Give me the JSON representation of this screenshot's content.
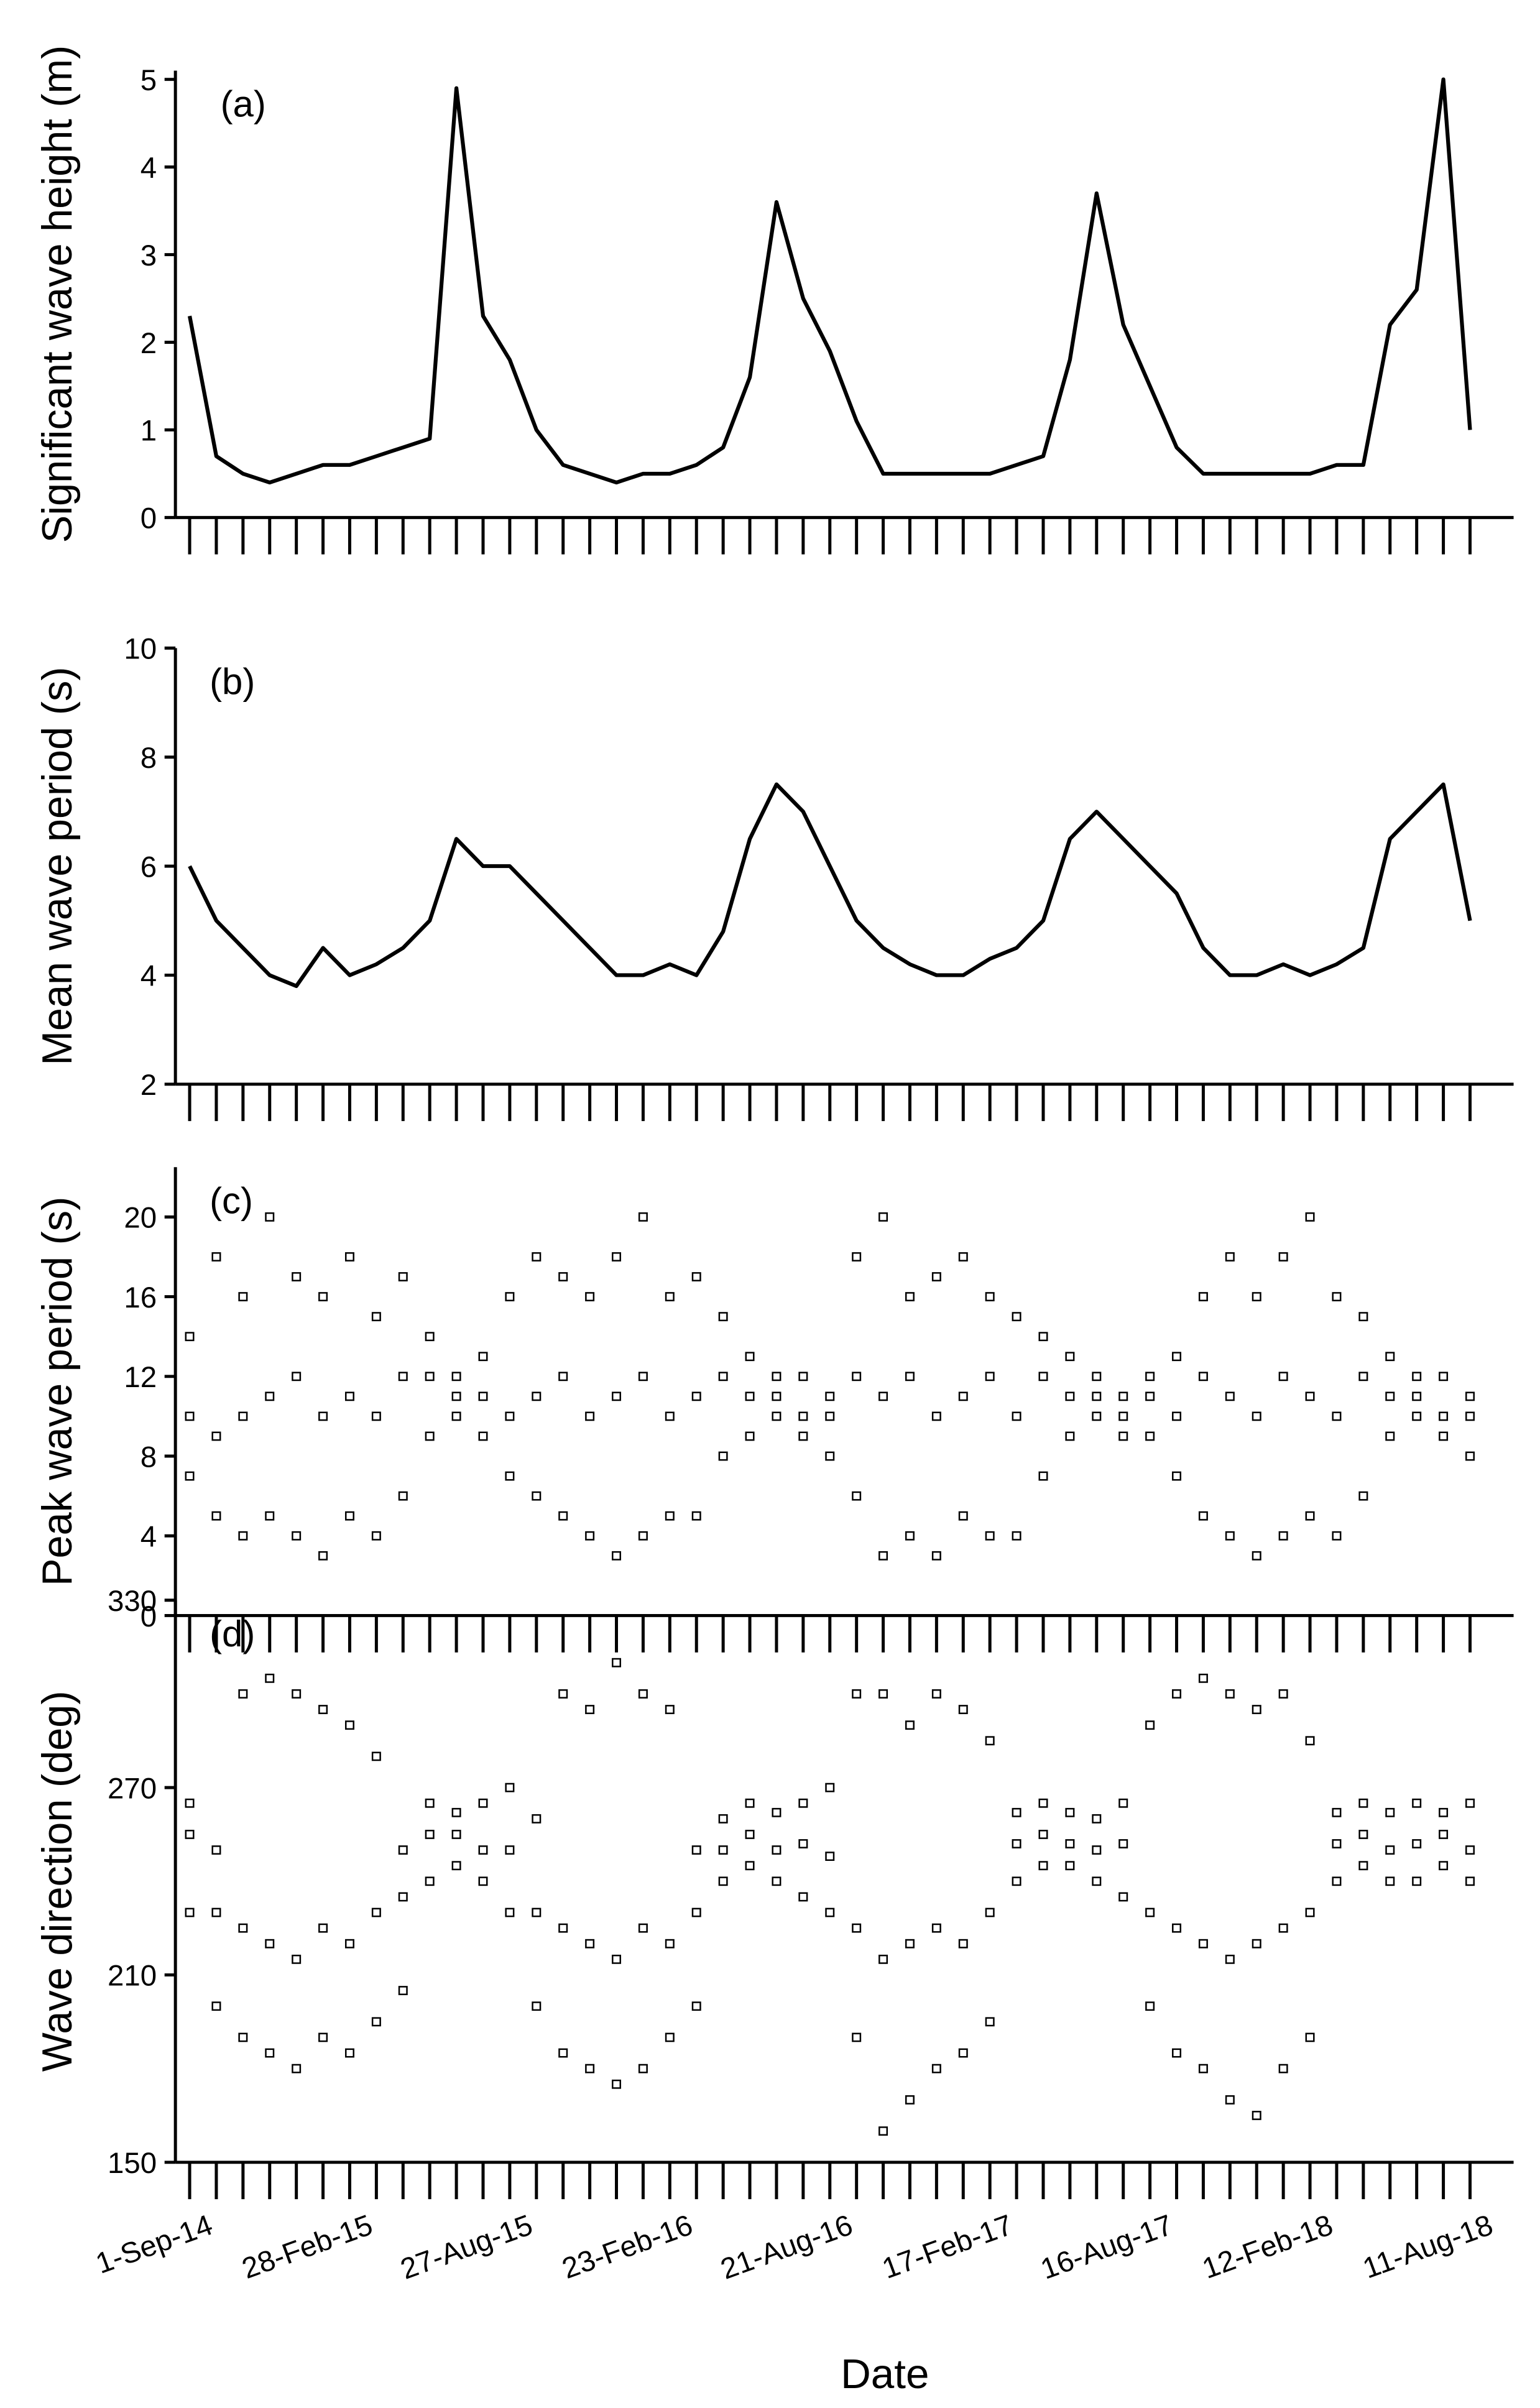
{
  "chart_data": [
    {
      "type": "line",
      "annotation": "(a)",
      "ylabel": "Significant wave height (m)",
      "color": "#000000",
      "xlim": [
        "2014-08-16",
        "2018-09-29"
      ],
      "ylim": [
        0,
        5.1
      ],
      "yticks": [
        0,
        1,
        2,
        3,
        4,
        5
      ],
      "x": [
        "2014-09-01",
        "2014-10-01",
        "2014-10-31",
        "2014-11-30",
        "2014-12-30",
        "2015-01-29",
        "2015-02-28",
        "2015-03-30",
        "2015-04-29",
        "2015-05-29",
        "2015-06-28",
        "2015-07-28",
        "2015-08-27",
        "2015-09-26",
        "2015-10-26",
        "2015-11-25",
        "2015-12-25",
        "2016-01-24",
        "2016-02-23",
        "2016-03-24",
        "2016-04-23",
        "2016-05-23",
        "2016-06-22",
        "2016-07-22",
        "2016-08-21",
        "2016-09-20",
        "2016-10-20",
        "2016-11-19",
        "2016-12-19",
        "2017-01-18",
        "2017-02-17",
        "2017-03-19",
        "2017-04-18",
        "2017-05-18",
        "2017-06-17",
        "2017-07-17",
        "2017-08-16",
        "2017-09-15",
        "2017-10-15",
        "2017-11-14",
        "2017-12-14",
        "2018-01-13",
        "2018-02-12",
        "2018-03-14",
        "2018-04-13",
        "2018-05-13",
        "2018-06-12",
        "2018-07-12",
        "2018-08-11"
      ],
      "values": [
        2.3,
        0.7,
        0.5,
        0.4,
        0.5,
        0.6,
        0.6,
        0.7,
        0.8,
        0.9,
        4.9,
        2.3,
        1.8,
        1.0,
        0.6,
        0.5,
        0.4,
        0.5,
        0.5,
        0.6,
        0.8,
        1.6,
        3.6,
        2.5,
        1.9,
        1.1,
        0.5,
        0.5,
        0.5,
        0.5,
        0.5,
        0.6,
        0.7,
        1.8,
        3.7,
        2.2,
        1.5,
        0.8,
        0.5,
        0.5,
        0.5,
        0.5,
        0.5,
        0.6,
        0.6,
        2.2,
        2.6,
        5.0,
        1.0
      ]
    },
    {
      "type": "line",
      "annotation": "(b)",
      "ylabel": "Mean wave period (s)",
      "color": "#000000",
      "xlim": [
        "2014-08-16",
        "2018-09-29"
      ],
      "ylim": [
        2,
        10
      ],
      "yticks": [
        2,
        4,
        6,
        8,
        10
      ],
      "x": [
        "2014-09-01",
        "2014-10-01",
        "2014-10-31",
        "2014-11-30",
        "2014-12-30",
        "2015-01-29",
        "2015-02-28",
        "2015-03-30",
        "2015-04-29",
        "2015-05-29",
        "2015-06-28",
        "2015-07-28",
        "2015-08-27",
        "2015-09-26",
        "2015-10-26",
        "2015-11-25",
        "2015-12-25",
        "2016-01-24",
        "2016-02-23",
        "2016-03-24",
        "2016-04-23",
        "2016-05-23",
        "2016-06-22",
        "2016-07-22",
        "2016-08-21",
        "2016-09-20",
        "2016-10-20",
        "2016-11-19",
        "2016-12-19",
        "2017-01-18",
        "2017-02-17",
        "2017-03-19",
        "2017-04-18",
        "2017-05-18",
        "2017-06-17",
        "2017-07-17",
        "2017-08-16",
        "2017-09-15",
        "2017-10-15",
        "2017-11-14",
        "2017-12-14",
        "2018-01-13",
        "2018-02-12",
        "2018-03-14",
        "2018-04-13",
        "2018-05-13",
        "2018-06-12",
        "2018-07-12",
        "2018-08-11"
      ],
      "values": [
        6.0,
        5.0,
        4.5,
        4.0,
        3.8,
        4.5,
        4.0,
        4.2,
        4.5,
        5.0,
        6.5,
        6.0,
        6.0,
        5.5,
        5.0,
        4.5,
        4.0,
        4.0,
        4.2,
        4.0,
        4.8,
        6.5,
        7.5,
        7.0,
        6.0,
        5.0,
        4.5,
        4.2,
        4.0,
        4.0,
        4.3,
        4.5,
        5.0,
        6.5,
        7.0,
        6.5,
        6.0,
        5.5,
        4.5,
        4.0,
        4.0,
        4.2,
        4.0,
        4.2,
        4.5,
        6.5,
        7.0,
        7.5,
        5.0
      ]
    },
    {
      "type": "scatter",
      "annotation": "(c)",
      "ylabel": "Peak wave period (s)",
      "color": "#000000",
      "xlim": [
        "2014-08-16",
        "2018-09-29"
      ],
      "ylim": [
        0,
        22.5
      ],
      "yticks": [
        0,
        4,
        8,
        12,
        16,
        20
      ],
      "x": [
        "2014-09-01",
        "2014-10-01",
        "2014-10-31",
        "2014-11-30",
        "2014-12-30",
        "2015-01-29",
        "2015-02-28",
        "2015-03-30",
        "2015-04-29",
        "2015-05-29",
        "2015-06-28",
        "2015-07-28",
        "2015-08-27",
        "2015-09-26",
        "2015-10-26",
        "2015-11-25",
        "2015-12-25",
        "2016-01-24",
        "2016-02-23",
        "2016-03-24",
        "2016-04-23",
        "2016-05-23",
        "2016-06-22",
        "2016-07-22",
        "2016-08-21",
        "2016-09-20",
        "2016-10-20",
        "2016-11-19",
        "2016-12-19",
        "2017-01-18",
        "2017-02-17",
        "2017-03-19",
        "2017-04-18",
        "2017-05-18",
        "2017-06-17",
        "2017-07-17",
        "2017-08-16",
        "2017-09-15",
        "2017-10-15",
        "2017-11-14",
        "2017-12-14",
        "2018-01-13",
        "2018-02-12",
        "2018-03-14",
        "2018-04-13",
        "2018-05-13",
        "2018-06-12",
        "2018-07-12",
        "2018-08-11"
      ],
      "values": [
        [
          7,
          10,
          14
        ],
        [
          5,
          9,
          18
        ],
        [
          4,
          10,
          16
        ],
        [
          5,
          11,
          20
        ],
        [
          4,
          12,
          17
        ],
        [
          3,
          10,
          16
        ],
        [
          5,
          11,
          18
        ],
        [
          4,
          10,
          15
        ],
        [
          6,
          12,
          17
        ],
        [
          9,
          12,
          14
        ],
        [
          10,
          11,
          12
        ],
        [
          9,
          11,
          13
        ],
        [
          7,
          10,
          16
        ],
        [
          6,
          11,
          18
        ],
        [
          5,
          12,
          17
        ],
        [
          4,
          10,
          16
        ],
        [
          3,
          11,
          18
        ],
        [
          4,
          12,
          20
        ],
        [
          5,
          10,
          16
        ],
        [
          5,
          11,
          17
        ],
        [
          8,
          12,
          15
        ],
        [
          9,
          11,
          13
        ],
        [
          10,
          11,
          12
        ],
        [
          9,
          10,
          12
        ],
        [
          8,
          10,
          11
        ],
        [
          6,
          12,
          18
        ],
        [
          3,
          11,
          20
        ],
        [
          4,
          12,
          16
        ],
        [
          3,
          10,
          17
        ],
        [
          5,
          11,
          18
        ],
        [
          4,
          12,
          16
        ],
        [
          4,
          10,
          15
        ],
        [
          7,
          12,
          14
        ],
        [
          9,
          11,
          13
        ],
        [
          10,
          11,
          12
        ],
        [
          9,
          10,
          11
        ],
        [
          9,
          11,
          12
        ],
        [
          7,
          10,
          13
        ],
        [
          5,
          12,
          16
        ],
        [
          4,
          11,
          18
        ],
        [
          3,
          10,
          16
        ],
        [
          4,
          12,
          18
        ],
        [
          5,
          11,
          20
        ],
        [
          4,
          10,
          16
        ],
        [
          6,
          12,
          15
        ],
        [
          9,
          11,
          13
        ],
        [
          10,
          11,
          12
        ],
        [
          9,
          10,
          12
        ],
        [
          8,
          10,
          11
        ]
      ]
    },
    {
      "type": "scatter",
      "annotation": "(d)",
      "ylabel": "Wave direction (deg)",
      "xlabel": "Date",
      "color": "#000000",
      "xlim": [
        "2014-08-16",
        "2018-09-29"
      ],
      "ylim": [
        150,
        330
      ],
      "yticks": [
        150,
        210,
        270,
        330
      ],
      "xticks": [
        {
          "value": "2014-09-01",
          "label": "1-Sep-14"
        },
        {
          "value": "2015-02-28",
          "label": "28-Feb-15"
        },
        {
          "value": "2015-08-27",
          "label": "27-Aug-15"
        },
        {
          "value": "2016-02-23",
          "label": "23-Feb-16"
        },
        {
          "value": "2016-08-21",
          "label": "21-Aug-16"
        },
        {
          "value": "2017-02-17",
          "label": "17-Feb-17"
        },
        {
          "value": "2017-08-16",
          "label": "16-Aug-17"
        },
        {
          "value": "2018-02-12",
          "label": "12-Feb-18"
        },
        {
          "value": "2018-08-11",
          "label": "11-Aug-18"
        }
      ],
      "xminor_ticks": [
        "2014-10-01",
        "2014-10-31",
        "2014-11-30",
        "2014-12-30",
        "2015-01-29",
        "2015-03-30",
        "2015-04-29",
        "2015-05-29",
        "2015-06-28",
        "2015-07-28",
        "2015-09-26",
        "2015-10-26",
        "2015-11-25",
        "2015-12-25",
        "2016-01-24",
        "2016-03-24",
        "2016-04-23",
        "2016-05-23",
        "2016-06-22",
        "2016-07-22",
        "2016-09-20",
        "2016-10-20",
        "2016-11-19",
        "2016-12-19",
        "2017-01-18",
        "2017-03-19",
        "2017-04-18",
        "2017-05-18",
        "2017-06-17",
        "2017-07-17",
        "2017-09-15",
        "2017-10-15",
        "2017-11-14",
        "2017-12-14",
        "2018-01-13",
        "2018-03-14",
        "2018-04-13",
        "2018-05-13",
        "2018-06-12",
        "2018-07-12"
      ],
      "x": [
        "2014-09-01",
        "2014-10-01",
        "2014-10-31",
        "2014-11-30",
        "2014-12-30",
        "2015-01-29",
        "2015-02-28",
        "2015-03-30",
        "2015-04-29",
        "2015-05-29",
        "2015-06-28",
        "2015-07-28",
        "2015-08-27",
        "2015-09-26",
        "2015-10-26",
        "2015-11-25",
        "2015-12-25",
        "2016-01-24",
        "2016-02-23",
        "2016-03-24",
        "2016-04-23",
        "2016-05-23",
        "2016-06-22",
        "2016-07-22",
        "2016-08-21",
        "2016-09-20",
        "2016-10-20",
        "2016-11-19",
        "2016-12-19",
        "2017-01-18",
        "2017-02-17",
        "2017-03-19",
        "2017-04-18",
        "2017-05-18",
        "2017-06-17",
        "2017-07-17",
        "2017-08-16",
        "2017-09-15",
        "2017-10-15",
        "2017-11-14",
        "2017-12-14",
        "2018-01-13",
        "2018-02-12",
        "2018-03-14",
        "2018-04-13",
        "2018-05-13",
        "2018-06-12",
        "2018-07-12",
        "2018-08-11"
      ],
      "values": [
        [
          230,
          255,
          265
        ],
        [
          200,
          230,
          250
        ],
        [
          190,
          225,
          300
        ],
        [
          185,
          220,
          305
        ],
        [
          180,
          215,
          300
        ],
        [
          190,
          225,
          295
        ],
        [
          185,
          220,
          290
        ],
        [
          195,
          230,
          280
        ],
        [
          205,
          235,
          250
        ],
        [
          240,
          255,
          265
        ],
        [
          245,
          255,
          262
        ],
        [
          240,
          250,
          265
        ],
        [
          230,
          250,
          270
        ],
        [
          200,
          230,
          260
        ],
        [
          185,
          225,
          300
        ],
        [
          180,
          220,
          295
        ],
        [
          175,
          215,
          310
        ],
        [
          180,
          225,
          300
        ],
        [
          190,
          220,
          295
        ],
        [
          200,
          230,
          250
        ],
        [
          240,
          250,
          260
        ],
        [
          245,
          255,
          265
        ],
        [
          240,
          250,
          262
        ],
        [
          235,
          252,
          265
        ],
        [
          230,
          248,
          270
        ],
        [
          190,
          225,
          300
        ],
        [
          160,
          215,
          300
        ],
        [
          170,
          220,
          290
        ],
        [
          180,
          225,
          300
        ],
        [
          185,
          220,
          295
        ],
        [
          195,
          230,
          285
        ],
        [
          240,
          252,
          262
        ],
        [
          245,
          255,
          265
        ],
        [
          245,
          252,
          262
        ],
        [
          240,
          250,
          260
        ],
        [
          235,
          252,
          265
        ],
        [
          200,
          230,
          290
        ],
        [
          185,
          225,
          300
        ],
        [
          180,
          220,
          305
        ],
        [
          170,
          215,
          300
        ],
        [
          165,
          220,
          295
        ],
        [
          180,
          225,
          300
        ],
        [
          190,
          230,
          285
        ],
        [
          240,
          252,
          262
        ],
        [
          245,
          255,
          265
        ],
        [
          240,
          250,
          262
        ],
        [
          240,
          252,
          265
        ],
        [
          245,
          255,
          262
        ],
        [
          240,
          250,
          265
        ]
      ]
    }
  ]
}
